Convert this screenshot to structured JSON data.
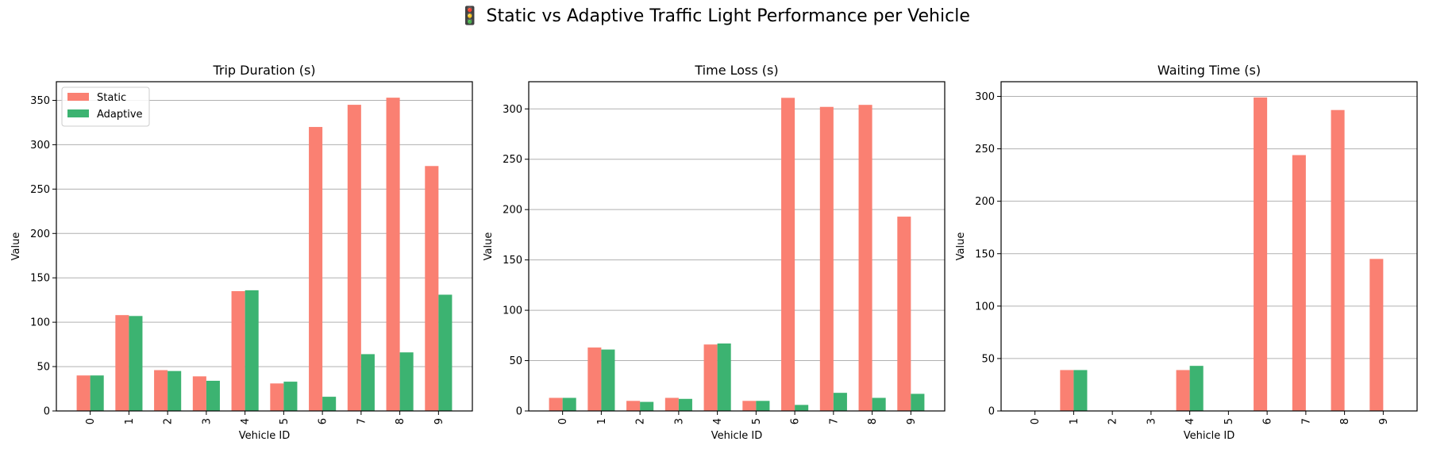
{
  "figure": {
    "title": "🚦 Static vs Adaptive Traffic Light Performance per Vehicle"
  },
  "colors": {
    "static": "#fa8072",
    "adaptive": "#3cb371",
    "grid": "#b0b0b0"
  },
  "legend": {
    "placement": "upper-left",
    "panel": 0
  },
  "chart_data": [
    {
      "type": "bar",
      "title": "Trip Duration (s)",
      "xlabel": "Vehicle ID",
      "ylabel": "Value",
      "categories": [
        "0",
        "1",
        "2",
        "3",
        "4",
        "5",
        "6",
        "7",
        "8",
        "9"
      ],
      "ylim": [
        0,
        371
      ],
      "yticks": [
        0,
        50,
        100,
        150,
        200,
        250,
        300,
        350
      ],
      "grid": "y",
      "series": [
        {
          "name": "Static",
          "values": [
            40,
            108,
            46,
            39,
            135,
            31,
            320,
            345,
            353,
            276
          ]
        },
        {
          "name": "Adaptive",
          "values": [
            40,
            107,
            45,
            34,
            136,
            33,
            16,
            64,
            66,
            131
          ]
        }
      ]
    },
    {
      "type": "bar",
      "title": "Time Loss (s)",
      "xlabel": "Vehicle ID",
      "ylabel": "Value",
      "categories": [
        "0",
        "1",
        "2",
        "3",
        "4",
        "5",
        "6",
        "7",
        "8",
        "9"
      ],
      "ylim": [
        0,
        327
      ],
      "yticks": [
        0,
        50,
        100,
        150,
        200,
        250,
        300
      ],
      "grid": "y",
      "series": [
        {
          "name": "Static",
          "values": [
            13,
            63,
            10,
            13,
            66,
            10,
            311,
            302,
            304,
            193
          ]
        },
        {
          "name": "Adaptive",
          "values": [
            13,
            61,
            9,
            12,
            67,
            10,
            6,
            18,
            13,
            17
          ]
        }
      ]
    },
    {
      "type": "bar",
      "title": "Waiting Time (s)",
      "xlabel": "Vehicle ID",
      "ylabel": "Value",
      "categories": [
        "0",
        "1",
        "2",
        "3",
        "4",
        "5",
        "6",
        "7",
        "8",
        "9"
      ],
      "ylim": [
        0,
        314
      ],
      "yticks": [
        0,
        50,
        100,
        150,
        200,
        250,
        300
      ],
      "grid": "y",
      "series": [
        {
          "name": "Static",
          "values": [
            0,
            39,
            0,
            0,
            39,
            0,
            299,
            244,
            287,
            145
          ]
        },
        {
          "name": "Adaptive",
          "values": [
            0,
            39,
            0,
            0,
            43,
            0,
            0,
            0,
            0,
            0
          ]
        }
      ]
    }
  ]
}
